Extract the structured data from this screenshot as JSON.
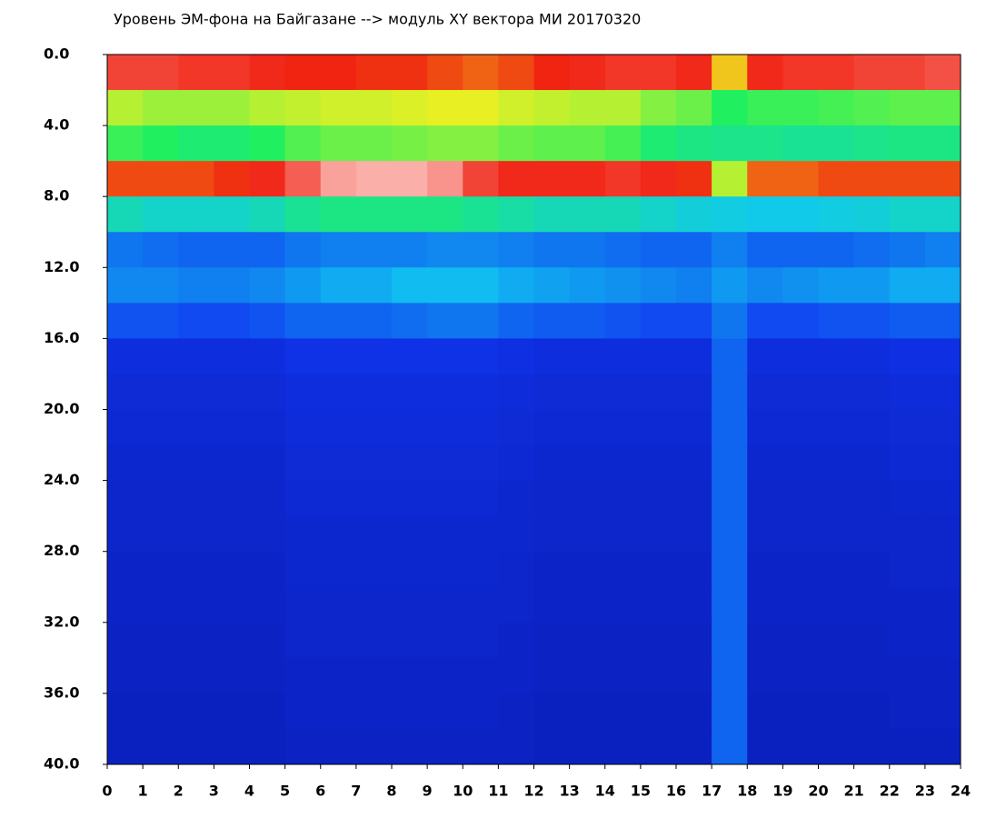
{
  "chart_data": {
    "type": "heatmap",
    "title": "Уровень ЭМ-фона на Байгазане  --> модуль XY вектора МИ  20170320",
    "xlim": [
      0,
      24
    ],
    "ylim": [
      0,
      40
    ],
    "y_inverted": true,
    "xticks": [
      0,
      1,
      2,
      3,
      4,
      5,
      6,
      7,
      8,
      9,
      10,
      11,
      12,
      13,
      14,
      15,
      16,
      17,
      18,
      19,
      20,
      21,
      22,
      23,
      24
    ],
    "yticks": [
      {
        "value": 0,
        "label": "0.0"
      },
      {
        "value": 4,
        "label": "4.0"
      },
      {
        "value": 8,
        "label": "8.0"
      },
      {
        "value": 12,
        "label": "12.0"
      },
      {
        "value": 16,
        "label": "16.0"
      },
      {
        "value": 20,
        "label": "20.0"
      },
      {
        "value": 24,
        "label": "24.0"
      },
      {
        "value": 28,
        "label": "28.0"
      },
      {
        "value": 32,
        "label": "32.0"
      },
      {
        "value": 36,
        "label": "36.0"
      },
      {
        "value": 40,
        "label": "40.0"
      }
    ],
    "x_bins": [
      0,
      1,
      2,
      3,
      4,
      5,
      6,
      7,
      8,
      9,
      10,
      11,
      12,
      13,
      14,
      15,
      16,
      17,
      18,
      19,
      20,
      21,
      22,
      23,
      24
    ],
    "y_bins": [
      0,
      2,
      4,
      6,
      8,
      10,
      12,
      14,
      16,
      18,
      20,
      22,
      24,
      26,
      28,
      30,
      32,
      34,
      36,
      38,
      40
    ],
    "colormap": [
      "#0a1ab0",
      "#1036f0",
      "#10c8f0",
      "#20f060",
      "#f0f020",
      "#f02010",
      "#ffffff"
    ],
    "values": [
      [
        0.86,
        0.86,
        0.85,
        0.85,
        0.84,
        0.83,
        0.83,
        0.82,
        0.82,
        0.8,
        0.78,
        0.8,
        0.83,
        0.84,
        0.85,
        0.85,
        0.84,
        0.7,
        0.84,
        0.85,
        0.85,
        0.86,
        0.86,
        0.87
      ],
      [
        0.62,
        0.6,
        0.6,
        0.6,
        0.62,
        0.63,
        0.64,
        0.64,
        0.65,
        0.66,
        0.66,
        0.64,
        0.63,
        0.62,
        0.62,
        0.58,
        0.56,
        0.5,
        0.52,
        0.52,
        0.53,
        0.54,
        0.55,
        0.55
      ],
      [
        0.52,
        0.5,
        0.48,
        0.48,
        0.5,
        0.54,
        0.56,
        0.56,
        0.57,
        0.58,
        0.58,
        0.56,
        0.55,
        0.55,
        0.53,
        0.48,
        0.46,
        0.45,
        0.45,
        0.44,
        0.44,
        0.45,
        0.46,
        0.46
      ],
      [
        0.8,
        0.8,
        0.8,
        0.82,
        0.84,
        0.88,
        0.93,
        0.94,
        0.94,
        0.92,
        0.86,
        0.84,
        0.84,
        0.84,
        0.85,
        0.84,
        0.82,
        0.62,
        0.78,
        0.78,
        0.8,
        0.8,
        0.8,
        0.8
      ],
      [
        0.4,
        0.38,
        0.38,
        0.38,
        0.4,
        0.44,
        0.46,
        0.46,
        0.46,
        0.46,
        0.44,
        0.42,
        0.4,
        0.4,
        0.4,
        0.38,
        0.36,
        0.35,
        0.34,
        0.34,
        0.35,
        0.36,
        0.38,
        0.38
      ],
      [
        0.24,
        0.23,
        0.22,
        0.22,
        0.22,
        0.24,
        0.25,
        0.25,
        0.25,
        0.26,
        0.26,
        0.25,
        0.24,
        0.24,
        0.23,
        0.22,
        0.22,
        0.25,
        0.22,
        0.22,
        0.22,
        0.23,
        0.24,
        0.25
      ],
      [
        0.26,
        0.26,
        0.25,
        0.25,
        0.26,
        0.28,
        0.3,
        0.3,
        0.32,
        0.32,
        0.32,
        0.3,
        0.29,
        0.28,
        0.27,
        0.26,
        0.25,
        0.28,
        0.26,
        0.27,
        0.28,
        0.28,
        0.3,
        0.3
      ],
      [
        0.2,
        0.2,
        0.19,
        0.19,
        0.2,
        0.22,
        0.22,
        0.22,
        0.23,
        0.24,
        0.24,
        0.22,
        0.21,
        0.21,
        0.2,
        0.19,
        0.19,
        0.24,
        0.19,
        0.19,
        0.2,
        0.2,
        0.21,
        0.21
      ],
      [
        0.12,
        0.12,
        0.12,
        0.12,
        0.12,
        0.14,
        0.14,
        0.14,
        0.14,
        0.14,
        0.14,
        0.13,
        0.12,
        0.12,
        0.12,
        0.12,
        0.12,
        0.22,
        0.12,
        0.12,
        0.12,
        0.12,
        0.13,
        0.13
      ],
      [
        0.1,
        0.1,
        0.1,
        0.1,
        0.1,
        0.12,
        0.12,
        0.12,
        0.12,
        0.12,
        0.12,
        0.11,
        0.1,
        0.1,
        0.1,
        0.1,
        0.1,
        0.22,
        0.1,
        0.1,
        0.1,
        0.1,
        0.11,
        0.11
      ],
      [
        0.09,
        0.09,
        0.09,
        0.09,
        0.09,
        0.11,
        0.11,
        0.11,
        0.11,
        0.11,
        0.11,
        0.1,
        0.09,
        0.09,
        0.09,
        0.09,
        0.09,
        0.22,
        0.09,
        0.09,
        0.09,
        0.09,
        0.1,
        0.1
      ],
      [
        0.08,
        0.08,
        0.08,
        0.08,
        0.08,
        0.1,
        0.1,
        0.1,
        0.1,
        0.1,
        0.1,
        0.09,
        0.08,
        0.08,
        0.08,
        0.08,
        0.08,
        0.22,
        0.08,
        0.08,
        0.08,
        0.08,
        0.09,
        0.09
      ],
      [
        0.07,
        0.07,
        0.07,
        0.07,
        0.07,
        0.09,
        0.09,
        0.09,
        0.09,
        0.09,
        0.09,
        0.08,
        0.07,
        0.07,
        0.07,
        0.07,
        0.07,
        0.22,
        0.07,
        0.07,
        0.07,
        0.07,
        0.08,
        0.08
      ],
      [
        0.07,
        0.07,
        0.07,
        0.07,
        0.07,
        0.08,
        0.08,
        0.08,
        0.08,
        0.08,
        0.08,
        0.08,
        0.07,
        0.07,
        0.07,
        0.07,
        0.07,
        0.22,
        0.07,
        0.07,
        0.07,
        0.07,
        0.07,
        0.07
      ],
      [
        0.06,
        0.06,
        0.06,
        0.06,
        0.06,
        0.08,
        0.08,
        0.08,
        0.08,
        0.08,
        0.08,
        0.07,
        0.06,
        0.06,
        0.06,
        0.06,
        0.06,
        0.22,
        0.06,
        0.06,
        0.06,
        0.06,
        0.07,
        0.07
      ],
      [
        0.06,
        0.06,
        0.06,
        0.06,
        0.06,
        0.07,
        0.07,
        0.07,
        0.07,
        0.07,
        0.07,
        0.07,
        0.06,
        0.06,
        0.06,
        0.06,
        0.06,
        0.22,
        0.06,
        0.06,
        0.06,
        0.06,
        0.06,
        0.06
      ],
      [
        0.05,
        0.05,
        0.05,
        0.05,
        0.05,
        0.07,
        0.07,
        0.07,
        0.07,
        0.07,
        0.07,
        0.06,
        0.05,
        0.05,
        0.05,
        0.05,
        0.05,
        0.22,
        0.05,
        0.05,
        0.05,
        0.05,
        0.06,
        0.06
      ],
      [
        0.05,
        0.05,
        0.05,
        0.05,
        0.05,
        0.06,
        0.06,
        0.06,
        0.06,
        0.06,
        0.06,
        0.06,
        0.05,
        0.05,
        0.05,
        0.05,
        0.05,
        0.22,
        0.05,
        0.05,
        0.05,
        0.05,
        0.05,
        0.05
      ],
      [
        0.04,
        0.04,
        0.04,
        0.04,
        0.04,
        0.06,
        0.06,
        0.06,
        0.06,
        0.06,
        0.06,
        0.05,
        0.04,
        0.04,
        0.04,
        0.04,
        0.04,
        0.22,
        0.04,
        0.04,
        0.04,
        0.04,
        0.05,
        0.05
      ],
      [
        0.04,
        0.04,
        0.04,
        0.04,
        0.04,
        0.05,
        0.05,
        0.05,
        0.05,
        0.05,
        0.05,
        0.05,
        0.04,
        0.04,
        0.04,
        0.04,
        0.04,
        0.22,
        0.04,
        0.04,
        0.04,
        0.04,
        0.04,
        0.04
      ]
    ]
  }
}
